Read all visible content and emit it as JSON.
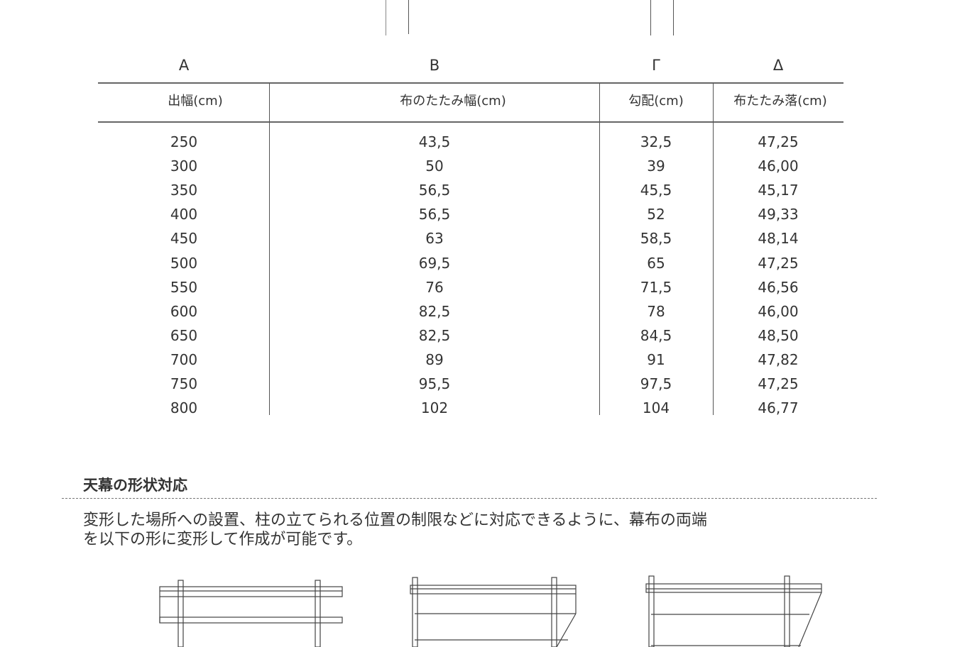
{
  "table": {
    "column_letters": [
      "Α",
      "Β",
      "Γ",
      "Δ"
    ],
    "headers": [
      "出幅(cm)",
      "布のたたみ幅(cm)",
      "勾配(cm)",
      "布たたみ落(cm)"
    ],
    "rows": [
      [
        "250",
        "43,5",
        "32,5",
        "47,25"
      ],
      [
        "300",
        "50",
        "39",
        "46,00"
      ],
      [
        "350",
        "56,5",
        "45,5",
        "45,17"
      ],
      [
        "400",
        "56,5",
        "52",
        "49,33"
      ],
      [
        "450",
        "63",
        "58,5",
        "48,14"
      ],
      [
        "500",
        "69,5",
        "65",
        "47,25"
      ],
      [
        "550",
        "76",
        "71,5",
        "46,56"
      ],
      [
        "600",
        "82,5",
        "78",
        "46,00"
      ],
      [
        "650",
        "82,5",
        "84,5",
        "48,50"
      ],
      [
        "700",
        "89",
        "91",
        "47,82"
      ],
      [
        "750",
        "95,5",
        "97,5",
        "47,25"
      ],
      [
        "800",
        "102",
        "104",
        "46,77"
      ]
    ]
  },
  "section": {
    "title": "天幕の形状対応",
    "paragraph_line1": "変形した場所への設置、柱の立てられる位置の制限などに対応できるように、幕布の両端",
    "paragraph_line2": "を以下の形に変形して作成が可能です。"
  }
}
